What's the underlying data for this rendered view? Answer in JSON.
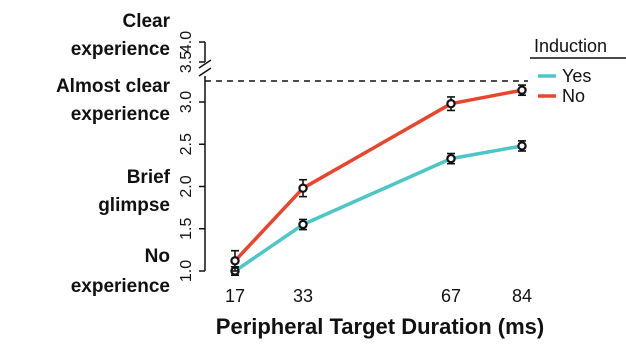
{
  "chart_data": {
    "type": "line",
    "x": [
      17,
      33,
      67,
      84
    ],
    "xlabel": "Peripheral Target Duration (ms)",
    "ylabel": "",
    "ylim": [
      1.0,
      4.0
    ],
    "y_ticks": [
      "1.0",
      "1.5",
      "2.0",
      "2.5",
      "3.0",
      "3.5",
      "4.0"
    ],
    "axis_break": "between 3.2 and 3.5",
    "reference_line": {
      "y": 3.2,
      "style": "dashed"
    },
    "category_labels": [
      {
        "lines": [
          "Clear",
          "experience"
        ],
        "y": 4.0
      },
      {
        "lines": [
          "Almost clear",
          "experience"
        ],
        "y": 3.0
      },
      {
        "lines": [
          "Brief",
          "glimpse"
        ],
        "y": 2.0
      },
      {
        "lines": [
          "No",
          "experience"
        ],
        "y": 1.0
      }
    ],
    "legend": {
      "title": "Induction",
      "position": "top-right"
    },
    "series": [
      {
        "name": "Yes",
        "color": "#4cc6c6",
        "values": [
          1.0,
          1.55,
          2.33,
          2.48
        ],
        "errors": [
          0.05,
          0.06,
          0.06,
          0.06
        ]
      },
      {
        "name": "No",
        "color": "#e8452c",
        "values": [
          1.12,
          1.98,
          2.98,
          3.14
        ],
        "errors": [
          0.12,
          0.1,
          0.08,
          0.06
        ]
      }
    ],
    "grid": false
  }
}
